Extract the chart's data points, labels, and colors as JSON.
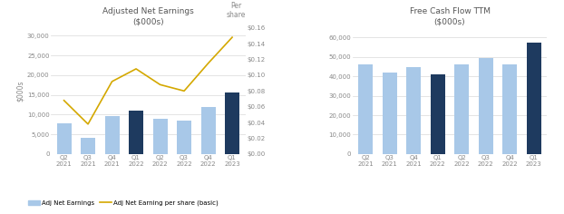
{
  "categories": [
    "Q2\n2021",
    "Q3\n2021",
    "Q4\n2021",
    "Q1\n2022",
    "Q2\n2022",
    "Q3\n2022",
    "Q4\n2022",
    "Q1\n2023"
  ],
  "adj_net_earnings": [
    7700,
    4200,
    9700,
    11000,
    9000,
    8400,
    12000,
    15500
  ],
  "adj_net_earnings_colors": [
    "#a8c8e8",
    "#a8c8e8",
    "#a8c8e8",
    "#1e3a5f",
    "#a8c8e8",
    "#a8c8e8",
    "#a8c8e8",
    "#1e3a5f"
  ],
  "adj_net_per_share": [
    0.068,
    0.038,
    0.092,
    0.108,
    0.088,
    0.08,
    0.115,
    0.148
  ],
  "free_cash_flow": [
    46000,
    42000,
    45000,
    41000,
    46000,
    49500,
    46000,
    57500
  ],
  "free_cash_flow_colors": [
    "#a8c8e8",
    "#a8c8e8",
    "#a8c8e8",
    "#1e3a5f",
    "#a8c8e8",
    "#a8c8e8",
    "#a8c8e8",
    "#1e3a5f"
  ],
  "left_title_line1": "Adjusted Net Earnings",
  "left_title_line2": "($000s)",
  "right_title_line1": "Free Cash Flow TTM",
  "right_title_line2": "($000s)",
  "left_ylabel": "$000s",
  "per_share_label": "Per\nshare",
  "left_ylim": [
    0,
    32000
  ],
  "right_ylim": [
    0,
    65000
  ],
  "per_share_ylim": [
    0,
    0.16
  ],
  "line_color": "#d4a800",
  "background_color": "#ffffff",
  "grid_color": "#d9d9d9",
  "tick_color": "#888888",
  "legend_bar_label": "Adj Net Earnings",
  "legend_line_label": "Adj Net Earning per share (basic)",
  "title_color": "#555555"
}
